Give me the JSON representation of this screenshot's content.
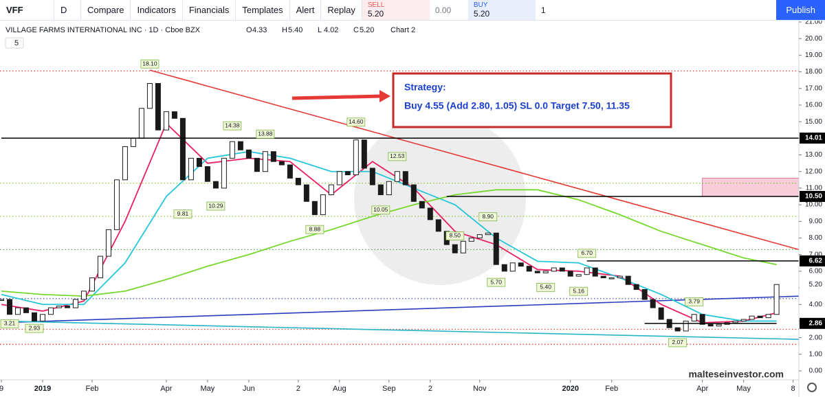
{
  "toolbar": {
    "symbol": "VFF",
    "interval": "D",
    "buttons": [
      "Compare",
      "Indicators",
      "Financials",
      "Templates",
      "Alert",
      "Replay"
    ],
    "sell": {
      "label": "SELL",
      "price": "5.20"
    },
    "spread": "0.00",
    "buy": {
      "label": "BUY",
      "price": "5.20"
    },
    "quantity": "1",
    "publish": "Publish"
  },
  "chart_data": {
    "type": "candlestick",
    "title": "VILLAGE FARMS INTERNATIONAL INC · 1D · Cboe BZX",
    "ohlc": [
      {
        "label": "O",
        "value": 4.33
      },
      {
        "label": "H",
        "value": 5.4,
        "text": "5.40"
      },
      {
        "label": "L",
        "value": 4.02
      },
      {
        "label": "C",
        "value": 5.2,
        "text": "5.20"
      }
    ],
    "chart_name": "Chart 2",
    "indicator_count": "5",
    "close": [
      4.3,
      3.4,
      3.8,
      3.5,
      3.0,
      3.4,
      3.8,
      3.9,
      3.8,
      4.3,
      4.8,
      5.6,
      6.9,
      8.5,
      11.5,
      13.5,
      14.0,
      15.8,
      17.3,
      14.5,
      15.6,
      15.2,
      11.5,
      12.8,
      12.3,
      11.4,
      11.0,
      12.8,
      13.8,
      13.3,
      12.8,
      12.0,
      13.2,
      12.6,
      12.4,
      11.6,
      11.2,
      10.2,
      9.4,
      10.6,
      11.2,
      12.0,
      11.8,
      13.9,
      12.2,
      11.2,
      10.6,
      11.4,
      12.0,
      11.2,
      10.2,
      9.8,
      9.1,
      8.4,
      7.6,
      7.1,
      7.8,
      8.0,
      8.2,
      8.3,
      6.4,
      6.0,
      6.5,
      6.3,
      6.0,
      5.9,
      6.0,
      6.2,
      6.0,
      5.7,
      5.8,
      6.2,
      5.7,
      5.6,
      5.6,
      5.7,
      5.2,
      4.9,
      4.3,
      3.8,
      3.1,
      2.6,
      2.4,
      3.0,
      3.4,
      2.8,
      2.7,
      2.8,
      2.9,
      3.0,
      3.1,
      3.3,
      3.2,
      3.4,
      5.2
    ],
    "xlim": [
      0,
      96.7
    ],
    "ylim": [
      0,
      21
    ],
    "xticks": [
      {
        "value": 0,
        "label": "9"
      },
      {
        "value": 5,
        "label": "2019"
      },
      {
        "value": 11,
        "label": "Feb"
      },
      {
        "value": 20,
        "label": "Apr"
      },
      {
        "value": 25,
        "label": "May"
      },
      {
        "value": 30,
        "label": "Jun"
      },
      {
        "value": 36,
        "label": "2"
      },
      {
        "value": 41,
        "label": "Aug"
      },
      {
        "value": 47,
        "label": "Sep"
      },
      {
        "value": 52,
        "label": "2"
      },
      {
        "value": 58,
        "label": "Nov"
      },
      {
        "value": 69,
        "label": "2020"
      },
      {
        "value": 74,
        "label": "Feb"
      },
      {
        "value": 85,
        "label": "Apr"
      },
      {
        "value": 90,
        "label": "May"
      },
      {
        "value": 96,
        "label": "8"
      }
    ],
    "yticks": [
      {
        "value": 0,
        "label": "0.00"
      },
      {
        "value": 1,
        "label": "1.00"
      },
      {
        "value": 2,
        "label": "2.00"
      },
      {
        "value": 3,
        "label": "3.00"
      },
      {
        "value": 4,
        "label": "4.00"
      },
      {
        "value": 5,
        "label": "5.00"
      },
      {
        "value": 6,
        "label": "6.00"
      },
      {
        "value": 7,
        "label": "7.00"
      },
      {
        "value": 8,
        "label": "8.00"
      },
      {
        "value": 9,
        "label": "9.00"
      },
      {
        "value": 10,
        "label": "10.00"
      },
      {
        "value": 11,
        "label": "11.00"
      },
      {
        "value": 12,
        "label": "12.00"
      },
      {
        "value": 13,
        "label": "13.00"
      },
      {
        "value": 14,
        "label": "14.00"
      },
      {
        "value": 15,
        "label": "15.00"
      },
      {
        "value": 16,
        "label": "16.00"
      },
      {
        "value": 17,
        "label": "17.00"
      },
      {
        "value": 18,
        "label": "18.00"
      },
      {
        "value": 19,
        "label": "19.00"
      },
      {
        "value": 20,
        "label": "20.00"
      },
      {
        "value": 21,
        "label": "21.00"
      }
    ],
    "series": [
      {
        "color": "#e91e63",
        "x": [
          0,
          5,
          10,
          15,
          20,
          25,
          30,
          35,
          40,
          45,
          50,
          55,
          60,
          65,
          70,
          75,
          80,
          85,
          90,
          94
        ],
        "values": [
          4.0,
          3.6,
          4.2,
          9.0,
          14.9,
          12.5,
          12.8,
          12.6,
          10.6,
          12.6,
          11.0,
          8.4,
          7.6,
          6.1,
          6.0,
          5.7,
          4.0,
          2.9,
          3.0,
          3.5
        ]
      },
      {
        "color": "#26c6da",
        "x": [
          0,
          5,
          10,
          15,
          20,
          25,
          30,
          35,
          40,
          45,
          50,
          55,
          60,
          65,
          70,
          75,
          80,
          85,
          90,
          94
        ],
        "values": [
          4.6,
          4.0,
          4.0,
          6.5,
          10.5,
          12.8,
          13.2,
          12.8,
          12.0,
          12.0,
          11.0,
          10.0,
          8.0,
          6.6,
          6.5,
          5.6,
          4.6,
          3.4,
          3.0,
          3.0
        ]
      },
      {
        "color": "#76d72c",
        "x": [
          0,
          5,
          10,
          15,
          20,
          25,
          30,
          35,
          40,
          45,
          50,
          55,
          60,
          65,
          70,
          75,
          80,
          85,
          90,
          94
        ],
        "values": [
          4.8,
          4.6,
          4.5,
          4.8,
          5.5,
          6.3,
          7.0,
          7.8,
          8.5,
          9.3,
          10.0,
          10.6,
          10.9,
          10.9,
          10.3,
          9.4,
          8.4,
          7.6,
          6.8,
          6.4
        ]
      }
    ],
    "trendlines": [
      {
        "color": "#e53935",
        "from": [
          18,
          18.1
        ],
        "to": [
          96.7,
          7.3
        ]
      },
      {
        "color": "#2a3bbf",
        "from": [
          0,
          2.9
        ],
        "to": [
          96.7,
          4.5
        ]
      },
      {
        "color": "#26b5c6",
        "from": [
          0,
          3.0
        ],
        "to": [
          96.7,
          1.9
        ]
      }
    ],
    "dotted_levels": [
      {
        "value": 18.05,
        "color": "#e53935"
      },
      {
        "value": 11.3,
        "color": "#8bc34a"
      },
      {
        "value": 9.3,
        "color": "#8bc34a"
      },
      {
        "value": 7.3,
        "color": "#4caf50"
      },
      {
        "value": 4.35,
        "color": "#3f51b5"
      },
      {
        "value": 2.5,
        "color": "#e53935"
      },
      {
        "value": 1.6,
        "color": "#e53935"
      }
    ],
    "levels": [
      {
        "value": 14.01,
        "from_index": 0
      },
      {
        "value": 10.5,
        "label": "10.50",
        "from_index": 54
      },
      {
        "value": 6.62,
        "from_index": 71
      },
      {
        "value": 2.86,
        "from_index": 78,
        "to_index": 94
      }
    ],
    "zone": {
      "from_index": 85,
      "to_index": 96.7,
      "low": 10.5,
      "high": 11.6,
      "color": "#f8cdd9"
    },
    "highs": [
      {
        "index": 18,
        "value": 18.1,
        "label": "18.10"
      },
      {
        "index": 28,
        "value": 14.38
      },
      {
        "index": 32,
        "value": 13.88
      },
      {
        "index": 43,
        "value": 14.6,
        "label": "14.60"
      },
      {
        "index": 48,
        "value": 12.53
      },
      {
        "index": 59,
        "value": 8.9,
        "label": "8.90"
      },
      {
        "index": 71,
        "value": 6.7,
        "label": "6.70"
      },
      {
        "index": 84,
        "value": 3.79
      }
    ],
    "lows": [
      {
        "index": 1,
        "value": 3.21
      },
      {
        "index": 4,
        "value": 2.93
      },
      {
        "index": 22,
        "value": 9.81
      },
      {
        "index": 26,
        "value": 10.29
      },
      {
        "index": 38,
        "value": 8.88
      },
      {
        "index": 46,
        "value": 10.05
      },
      {
        "index": 55,
        "value": 8.5,
        "label": "8.50"
      },
      {
        "index": 60,
        "value": 5.7,
        "label": "5.70"
      },
      {
        "index": 66,
        "value": 5.4,
        "label": "5.40"
      },
      {
        "index": 70,
        "value": 5.16
      },
      {
        "index": 82,
        "value": 2.07
      }
    ],
    "last_price": {
      "value": 5.2,
      "label": "5.20"
    },
    "strategy": {
      "title": "Strategy:",
      "text": "Buy 4.55 (Add 2.80, 1.05) SL 0.0 Target 7.50, 11.35"
    },
    "watermark": "malteseinvestor.com"
  }
}
